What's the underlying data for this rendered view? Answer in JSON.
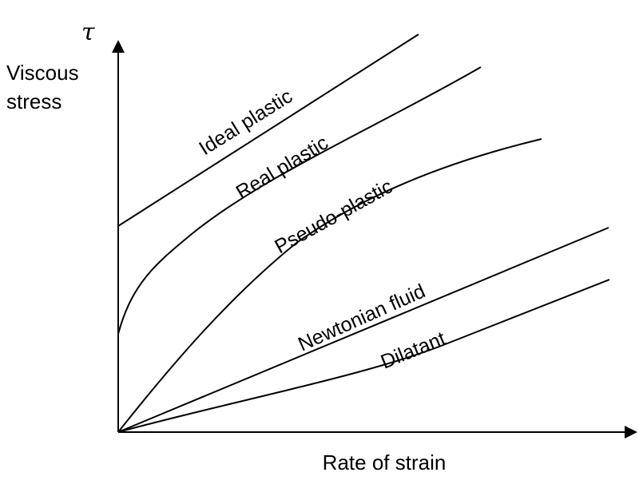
{
  "chart_data": {
    "type": "line",
    "title": "",
    "ylabel_symbol": "τ",
    "ylabel_lines": [
      "Viscous",
      "stress"
    ],
    "xlabel": "Rate of strain",
    "grid": false,
    "legend": "none",
    "series": [
      {
        "name": "Ideal plastic"
      },
      {
        "name": "Real plastic"
      },
      {
        "name": "Pseudo-plastic"
      },
      {
        "name": "Newtonian fluid"
      },
      {
        "name": "Dilatant"
      }
    ]
  }
}
